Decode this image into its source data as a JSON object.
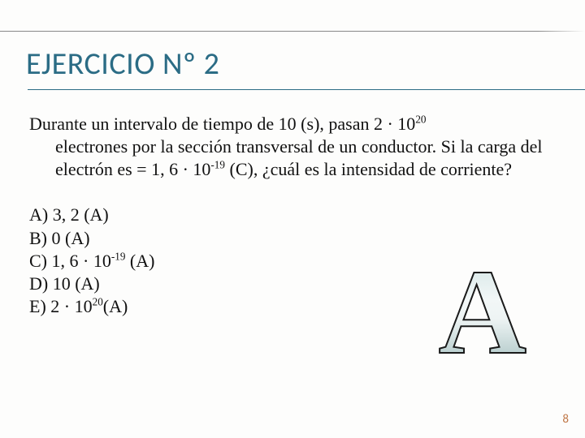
{
  "title": "EJERCICIO Nº 2",
  "question_first": "Durante un intervalo de tiempo de 10 (s), pasan 2 · 10",
  "question_exp1": "20",
  "question_rest1": " electrones por la sección transversal de un conductor. Si la carga del electrón es = 1, 6 · 10",
  "question_exp2": "-19",
  "question_rest2": " (C), ¿cuál es la intensidad de corriente?",
  "options": {
    "a": "A) 3, 2 (A)",
    "b": "B) 0 (A)",
    "c_pre": "C) 1, 6 · 10",
    "c_exp": "-19",
    "c_post": " (A)",
    "d": "D) 10 (A)",
    "e_pre": "E) 2 · 10",
    "e_exp": "20",
    "e_post": "(A)"
  },
  "answer_letter": "A",
  "page_number": "8",
  "colors": {
    "title": "#2b6c85",
    "text": "#111111",
    "page_num": "#c07848",
    "background": "#fdfdfc"
  },
  "fonts": {
    "title_family": "Calibri",
    "title_size_pt": 28,
    "body_family": "Georgia",
    "body_size_pt": 17,
    "answer_size_pt": 110
  }
}
